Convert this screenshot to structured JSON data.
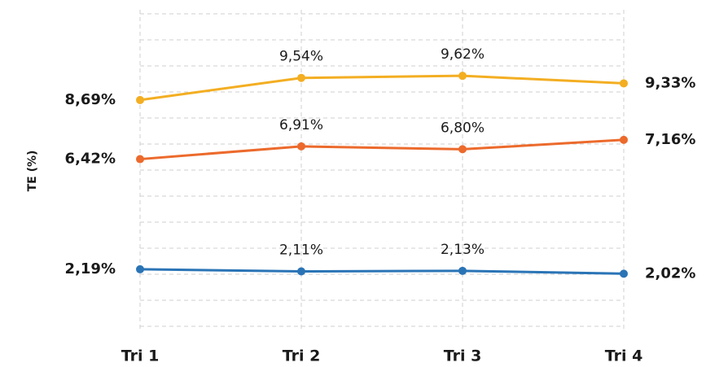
{
  "chart_data": {
    "type": "line",
    "y_label": "TE (%)",
    "categories": [
      "Tri 1",
      "Tri 2",
      "Tri 3",
      "Tri 4"
    ],
    "ylim": [
      0,
      12
    ],
    "yticks": [
      0,
      1,
      2,
      3,
      4,
      5,
      6,
      7,
      8,
      9,
      10,
      11,
      12
    ],
    "grid": true,
    "series": [
      {
        "color": "#f3ae22",
        "values": [
          8.69,
          9.54,
          9.62,
          9.33
        ],
        "value_labels": [
          "8,69%",
          "9,54%",
          "9,62%",
          "9,33%"
        ]
      },
      {
        "color": "#ec6a2c",
        "values": [
          6.42,
          6.91,
          6.8,
          7.16
        ],
        "value_labels": [
          "6,42%",
          "6,91%",
          "6,80%",
          "7,16%"
        ]
      },
      {
        "color": "#2a74b6",
        "values": [
          2.19,
          2.11,
          2.13,
          2.02
        ],
        "value_labels": [
          "2,19%",
          "2,11%",
          "2,13%",
          "2,02%"
        ]
      }
    ]
  }
}
